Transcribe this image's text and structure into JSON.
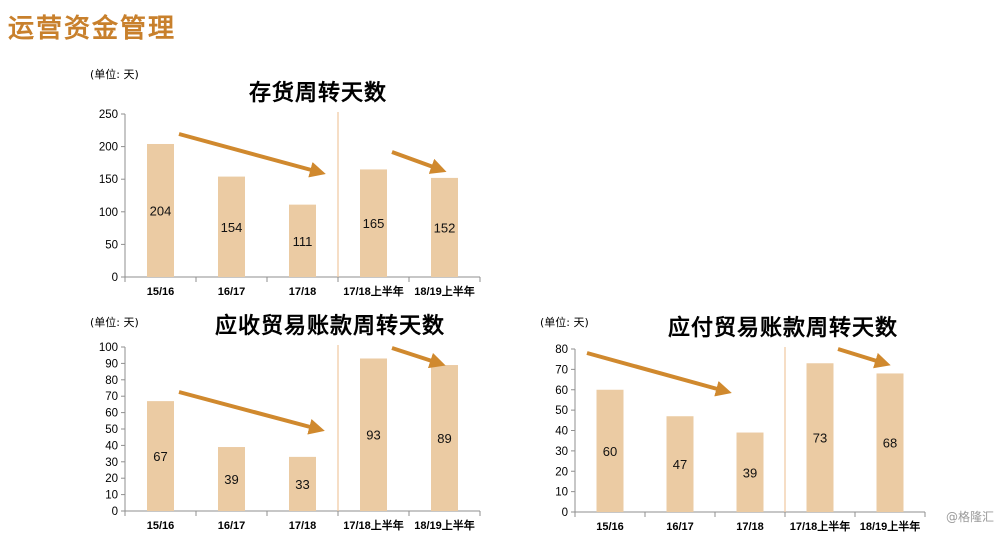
{
  "page": {
    "title": "运营资金管理",
    "watermark": "@格隆汇",
    "colors": {
      "title": "#C8802C",
      "bar": "#EBCBA3",
      "arrow": "#D0892E",
      "divider": "#F1C9A0",
      "axis": "#8f8f8f"
    }
  },
  "chart_data": [
    {
      "type": "bar",
      "title": "存货周转天数",
      "unit_label": "(单位: 天)",
      "categories": [
        "15/16",
        "16/17",
        "17/18",
        "17/18上半年",
        "18/19上半年"
      ],
      "values": [
        204,
        154,
        111,
        165,
        152
      ],
      "ylim": [
        0,
        250
      ],
      "yticks": [
        0,
        50,
        100,
        150,
        200,
        250
      ],
      "grid": false,
      "divider_after_index": 2,
      "annotations": [
        "trend-arrow-down-annual",
        "trend-arrow-down-half-year"
      ]
    },
    {
      "type": "bar",
      "title": "应收贸易账款周转天数",
      "unit_label": "(单位: 天)",
      "categories": [
        "15/16",
        "16/17",
        "17/18",
        "17/18上半年",
        "18/19上半年"
      ],
      "values": [
        67,
        39,
        33,
        93,
        89
      ],
      "ylim": [
        0,
        100
      ],
      "yticks": [
        0,
        10,
        20,
        30,
        40,
        50,
        60,
        70,
        80,
        90,
        100
      ],
      "grid": false,
      "divider_after_index": 2,
      "annotations": [
        "trend-arrow-down-annual",
        "trend-arrow-down-half-year"
      ]
    },
    {
      "type": "bar",
      "title": "应付贸易账款周转天数",
      "unit_label": "(单位: 天)",
      "categories": [
        "15/16",
        "16/17",
        "17/18",
        "17/18上半年",
        "18/19上半年"
      ],
      "values": [
        60,
        47,
        39,
        73,
        68
      ],
      "ylim": [
        0,
        80
      ],
      "yticks": [
        0,
        10,
        20,
        30,
        40,
        50,
        60,
        70,
        80
      ],
      "grid": false,
      "divider_after_index": 2,
      "annotations": [
        "trend-arrow-down-annual",
        "trend-arrow-down-half-year"
      ]
    }
  ]
}
